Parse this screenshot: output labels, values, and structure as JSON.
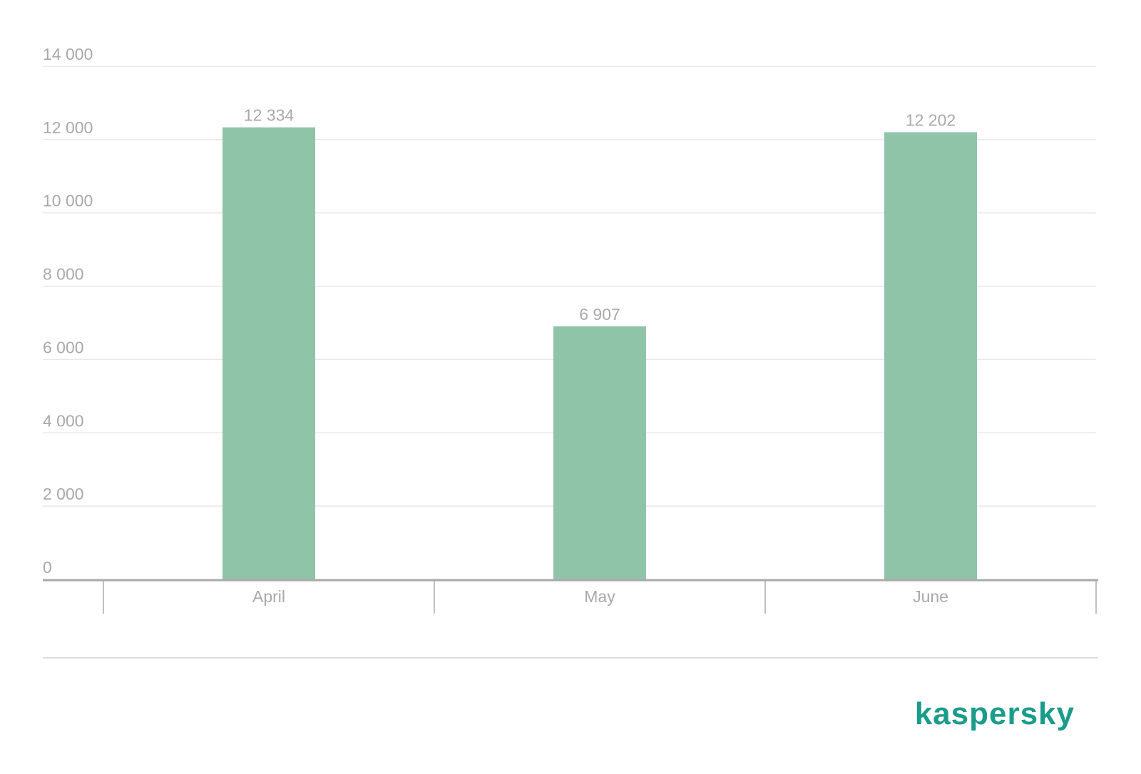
{
  "chart_data": {
    "type": "bar",
    "categories": [
      "April",
      "May",
      "June"
    ],
    "values": [
      12334,
      6907,
      12202
    ],
    "value_labels": [
      "12 334",
      "6 907",
      "12 202"
    ],
    "color": "#90c4a8",
    "ylim": [
      0,
      14000
    ],
    "yticks": [
      0,
      {
        "value": 2000,
        "label": "2 000"
      },
      {
        "value": 4000,
        "label": "4 000"
      },
      {
        "value": 6000,
        "label": "6 000"
      },
      {
        "value": 8000,
        "label": "8 000"
      },
      {
        "value": 10000,
        "label": "10 000"
      },
      {
        "value": 12000,
        "label": "12 000"
      },
      {
        "value": 14000,
        "label": "14 000"
      }
    ],
    "grid": true
  },
  "footer": {
    "brand": "kaspersky"
  }
}
